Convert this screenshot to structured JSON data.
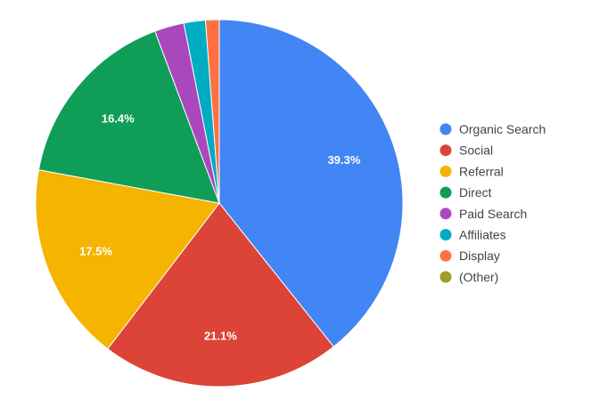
{
  "chart_data": {
    "type": "pie",
    "categories": [
      "Organic Search",
      "Social",
      "Referral",
      "Direct",
      "Paid Search",
      "Affiliates",
      "Display",
      "(Other)"
    ],
    "values": [
      39.3,
      21.1,
      17.5,
      16.4,
      2.6,
      1.9,
      1.2,
      0.0
    ],
    "labels": [
      "39.3%",
      "21.1%",
      "17.5%",
      "16.4%",
      "",
      "",
      "",
      ""
    ],
    "colors": [
      "#4285f4",
      "#db4437",
      "#f4b400",
      "#0f9d58",
      "#ab47bc",
      "#00acc1",
      "#ff7043",
      "#9e9d24"
    ],
    "legend_position": "right",
    "start_angle_deg": 0,
    "direction": "clockwise"
  }
}
